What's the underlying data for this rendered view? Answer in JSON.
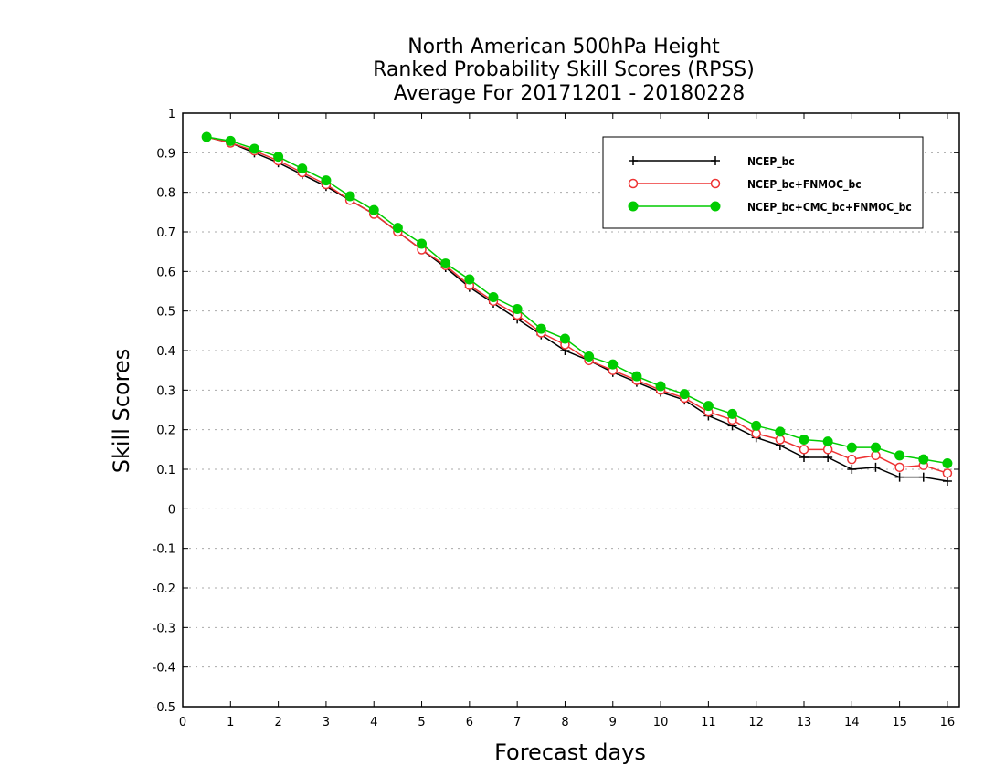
{
  "chart_data": {
    "type": "line",
    "title_lines": [
      "North American 500hPa Height",
      "Ranked Probability Skill Scores (RPSS)",
      "Average For 20171201 - 20180228"
    ],
    "xlabel": "Forecast days",
    "ylabel": "Skill Scores",
    "xlim": [
      0,
      16.25
    ],
    "ylim": [
      -0.5,
      1
    ],
    "x_ticks": [
      0,
      1,
      2,
      3,
      4,
      5,
      6,
      7,
      8,
      9,
      10,
      11,
      12,
      13,
      14,
      15,
      16
    ],
    "y_ticks": [
      -0.5,
      -0.4,
      -0.3,
      -0.2,
      -0.1,
      0,
      0.1,
      0.2,
      0.3,
      0.4,
      0.5,
      0.6,
      0.7,
      0.8,
      0.9,
      1
    ],
    "y_tick_labels": [
      "-0.5",
      "-0.4",
      "-0.3",
      "-0.2",
      "-0.1",
      "0",
      "0.1",
      "0.2",
      "0.3",
      "0.4",
      "0.5",
      "0.6",
      "0.7",
      "0.8",
      "0.9",
      "1"
    ],
    "grid": "horizontal dotted",
    "legend_position": "top-right",
    "x": [
      0.5,
      1,
      1.5,
      2,
      2.5,
      3,
      3.5,
      4,
      4.5,
      5,
      5.5,
      6,
      6.5,
      7,
      7.5,
      8,
      8.5,
      9,
      9.5,
      10,
      10.5,
      11,
      11.5,
      12,
      12.5,
      13,
      13.5,
      14,
      14.5,
      15,
      15.5,
      16
    ],
    "series": [
      {
        "name": "NCEP_bc",
        "color": "#000000",
        "marker": "plus",
        "values": [
          0.94,
          0.925,
          0.9,
          0.875,
          0.845,
          0.815,
          0.78,
          0.745,
          0.7,
          0.655,
          0.61,
          0.56,
          0.52,
          0.48,
          0.44,
          0.4,
          0.375,
          0.345,
          0.32,
          0.295,
          0.275,
          0.235,
          0.21,
          0.18,
          0.16,
          0.13,
          0.13,
          0.1,
          0.105,
          0.08,
          0.08,
          0.07
        ]
      },
      {
        "name": "NCEP_bc+FNMOC_bc",
        "color": "#ee3333",
        "marker": "open-circle",
        "values": [
          0.94,
          0.925,
          0.905,
          0.88,
          0.85,
          0.82,
          0.78,
          0.745,
          0.7,
          0.655,
          0.615,
          0.565,
          0.525,
          0.49,
          0.445,
          0.415,
          0.375,
          0.35,
          0.325,
          0.3,
          0.28,
          0.245,
          0.225,
          0.19,
          0.175,
          0.15,
          0.15,
          0.125,
          0.135,
          0.105,
          0.11,
          0.09
        ]
      },
      {
        "name": "NCEP_bc+CMC_bc+FNMOC_bc",
        "color": "#00cc00",
        "marker": "filled-circle",
        "values": [
          0.94,
          0.93,
          0.91,
          0.89,
          0.86,
          0.83,
          0.79,
          0.755,
          0.71,
          0.67,
          0.62,
          0.58,
          0.535,
          0.505,
          0.455,
          0.43,
          0.385,
          0.365,
          0.335,
          0.31,
          0.29,
          0.26,
          0.24,
          0.21,
          0.195,
          0.175,
          0.17,
          0.155,
          0.155,
          0.135,
          0.125,
          0.115
        ]
      }
    ]
  }
}
